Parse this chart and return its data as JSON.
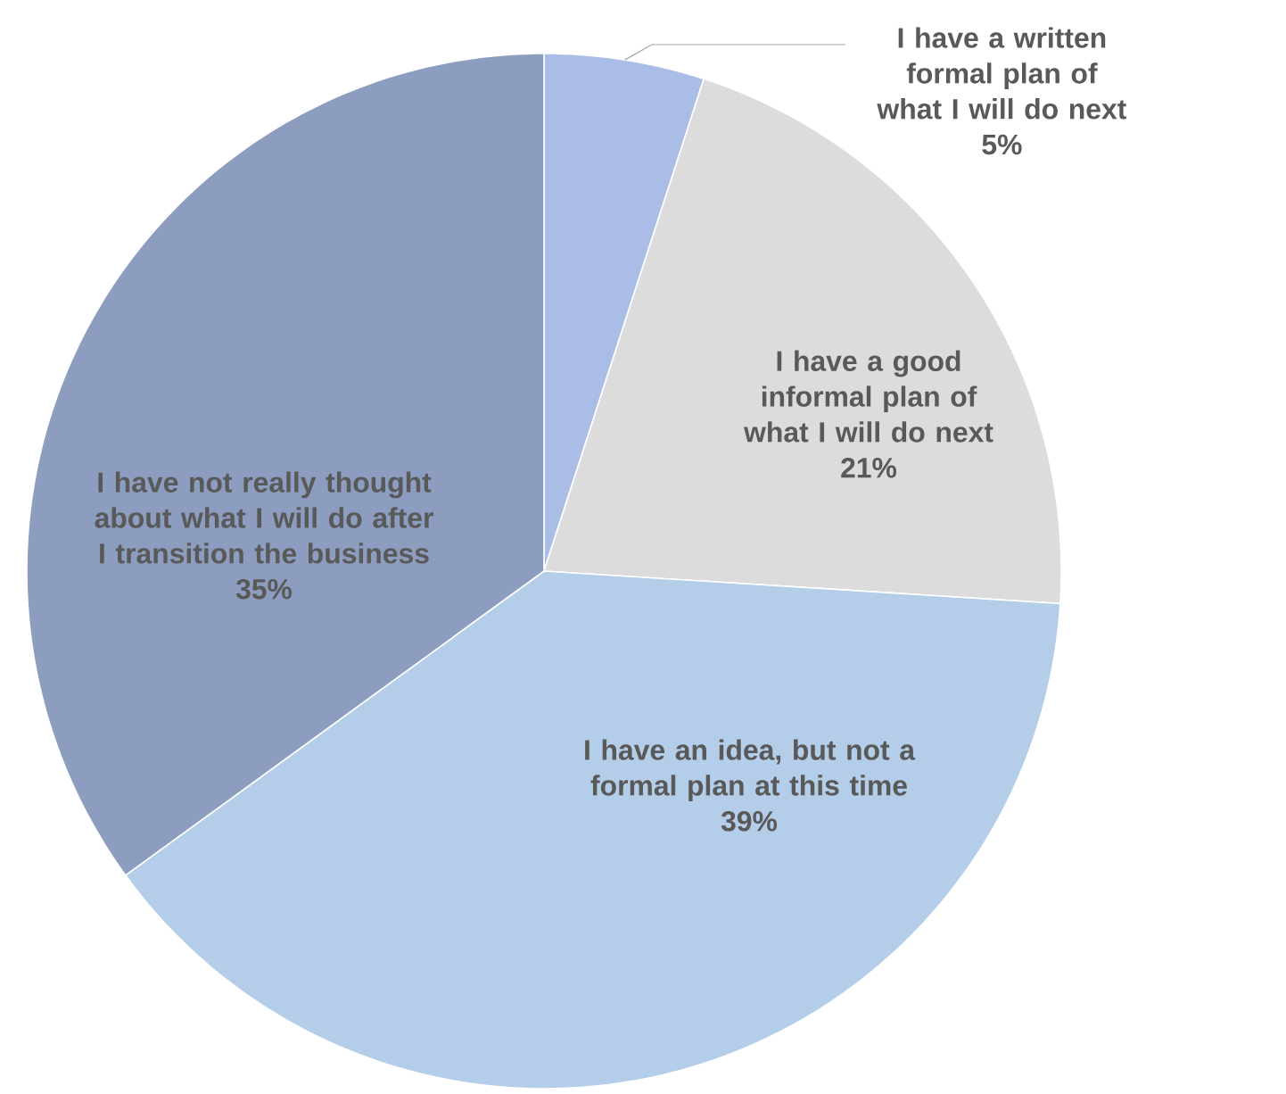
{
  "chart_data": {
    "type": "pie",
    "categories": [
      "I have a written formal plan of what I will do next",
      "I have a good informal plan of what I will do next",
      "I have an idea, but not a formal plan at this time",
      "I have not really thought about what I will do after I transition the business"
    ],
    "values": [
      5,
      21,
      39,
      35
    ],
    "value_labels": [
      "5%",
      "21%",
      "39%",
      "35%"
    ],
    "colors": [
      "#a9bde6",
      "#dcdcdc",
      "#b4cde8",
      "#8c9dc0"
    ]
  }
}
